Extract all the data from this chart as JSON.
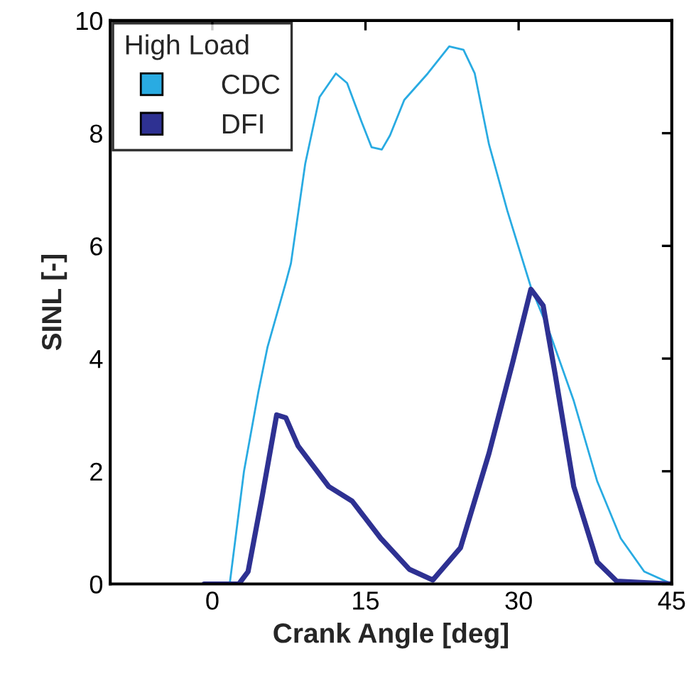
{
  "chart_data": {
    "type": "line",
    "xlabel": "Crank Angle [deg]",
    "ylabel": "SINL [-]",
    "legend_title": "High Load",
    "legend": "top left",
    "grid": false,
    "marker": "none",
    "line_style": "solid",
    "xlim": [
      -10,
      45
    ],
    "xticks": [
      0,
      15,
      30,
      45
    ],
    "ylim": [
      0,
      10
    ],
    "yticks": [
      0,
      2,
      4,
      6,
      8,
      10
    ],
    "series": [
      {
        "name": "CDC",
        "color": "#29abe2",
        "x": [
          -0.8,
          1.7,
          3.1,
          4.5,
          5.4,
          7.2,
          7.7,
          9.1,
          10.5,
          12.1,
          13.2,
          14.6,
          15.6,
          16.6,
          17.4,
          18.8,
          21.1,
          23.2,
          24.6,
          25.7,
          27.1,
          28.9,
          31.2,
          33.1,
          35.4,
          37.7,
          40.0,
          42.3,
          45
        ],
        "values": [
          0,
          0,
          2.0,
          3.4,
          4.2,
          5.35,
          5.69,
          7.46,
          8.64,
          9.06,
          8.89,
          8.21,
          7.75,
          7.71,
          7.96,
          8.59,
          9.06,
          9.54,
          9.48,
          9.06,
          7.8,
          6.62,
          5.27,
          4.43,
          3.25,
          1.82,
          0.81,
          0.22,
          0
        ]
      },
      {
        "name": "DFI",
        "color": "#2e3192",
        "x": [
          -0.8,
          2.6,
          3.5,
          4.9,
          6.3,
          7.2,
          8.4,
          11.4,
          13.7,
          16.5,
          19.3,
          21.6,
          24.3,
          27.1,
          29.4,
          31.2,
          32.4,
          33.6,
          35.4,
          37.7,
          39.6,
          45
        ],
        "values": [
          0,
          0,
          0.22,
          1.57,
          3.0,
          2.95,
          2.45,
          1.73,
          1.47,
          0.81,
          0.26,
          0.07,
          0.64,
          2.32,
          3.92,
          5.23,
          4.94,
          3.7,
          1.73,
          0.39,
          0.05,
          0
        ]
      }
    ]
  }
}
